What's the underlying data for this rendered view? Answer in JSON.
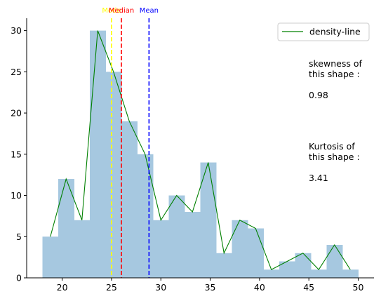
{
  "chart_data": {
    "type": "bar",
    "histogram": {
      "bin_edges": [
        18,
        19.6,
        21.2,
        22.8,
        24.4,
        26,
        27.6,
        29.2,
        30.8,
        32.4,
        34,
        35.6,
        37.2,
        38.8,
        40.4,
        42,
        43.6,
        45.2,
        46.8,
        48.4,
        50
      ],
      "counts": [
        5,
        12,
        7,
        30,
        25,
        19,
        15,
        7,
        10,
        8,
        14,
        3,
        7,
        6,
        1,
        2,
        3,
        1,
        4,
        1
      ],
      "color": "#a6c8e0"
    },
    "series": [
      {
        "name": "density-line",
        "color": "#008000",
        "x": [
          18.8,
          20.4,
          22.0,
          23.6,
          25.2,
          26.8,
          28.4,
          30.0,
          31.6,
          33.2,
          34.8,
          36.4,
          38.0,
          39.6,
          41.2,
          42.8,
          44.4,
          46.0,
          47.6,
          49.2
        ],
        "y": [
          5,
          12,
          7,
          30,
          25,
          19,
          15,
          7,
          10,
          8,
          14,
          3,
          7,
          6,
          1,
          2,
          3,
          1,
          4,
          1
        ]
      }
    ],
    "vlines": [
      {
        "label": "Mode",
        "x": 25.0,
        "color": "#ffff00"
      },
      {
        "label": "Median",
        "x": 26.0,
        "color": "#ff0000"
      },
      {
        "label": "Mean",
        "x": 28.8,
        "color": "#0000ff"
      }
    ],
    "xlim": [
      16.4,
      51.6
    ],
    "ylim": [
      0,
      31.5
    ],
    "xticks": [
      20,
      25,
      30,
      35,
      40,
      45,
      50
    ],
    "yticks": [
      0,
      5,
      10,
      15,
      20,
      25,
      30
    ],
    "legend": {
      "placement": "top-right"
    },
    "annotations": [
      {
        "lines": [
          "skewness of",
          "this shape :",
          "",
          "0.98"
        ]
      },
      {
        "lines": [
          "Kurtosis of",
          "this shape :",
          "",
          "3.41"
        ]
      }
    ],
    "grid": false
  }
}
